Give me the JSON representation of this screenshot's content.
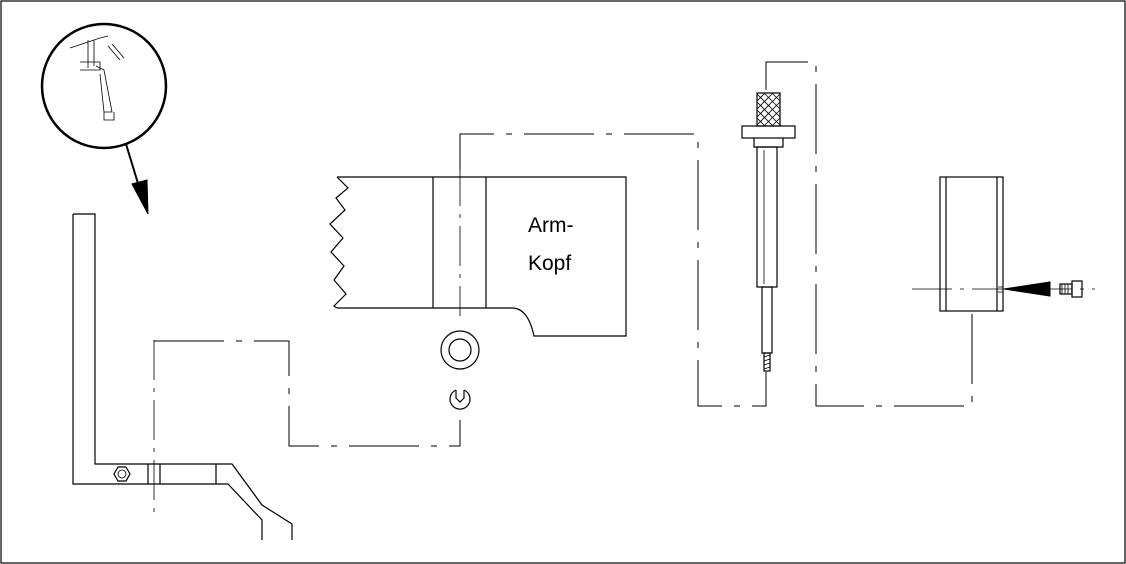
{
  "diagram": {
    "labels": {
      "arm_head_line1": "Arm-",
      "arm_head_line2": "Kopf"
    }
  }
}
